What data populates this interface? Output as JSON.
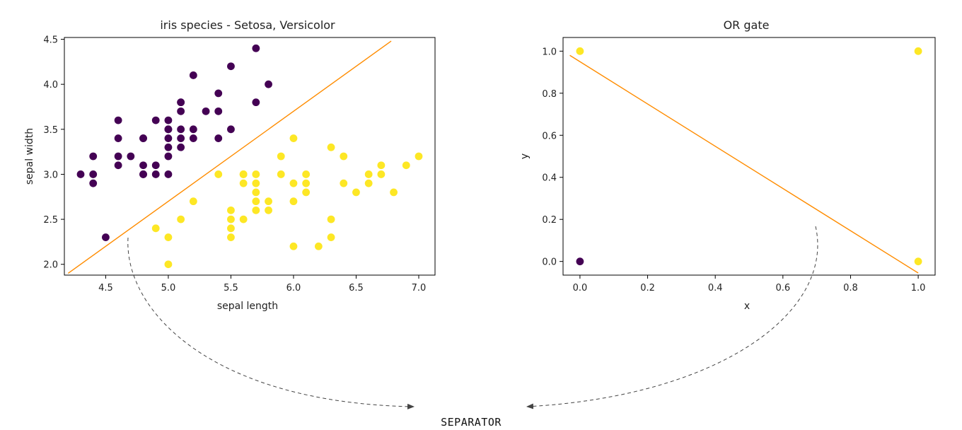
{
  "chart_data": [
    {
      "type": "scatter",
      "title": "iris species - Setosa, Versicolor",
      "xlabel": "sepal length",
      "ylabel": "sepal width",
      "xlim": [
        4.17,
        7.13
      ],
      "ylim": [
        1.88,
        4.52
      ],
      "xticks": [
        "4.5",
        "5.0",
        "5.5",
        "6.0",
        "6.5",
        "7.0"
      ],
      "yticks": [
        "2.0",
        "2.5",
        "3.0",
        "3.5",
        "4.0",
        "4.5"
      ],
      "grid": false,
      "series": [
        {
          "color": "#440154",
          "points": [
            [
              5.1,
              3.5
            ],
            [
              4.9,
              3.0
            ],
            [
              4.7,
              3.2
            ],
            [
              4.6,
              3.1
            ],
            [
              5.0,
              3.6
            ],
            [
              5.4,
              3.9
            ],
            [
              4.6,
              3.4
            ],
            [
              5.0,
              3.4
            ],
            [
              4.4,
              2.9
            ],
            [
              4.9,
              3.1
            ],
            [
              5.4,
              3.7
            ],
            [
              4.8,
              3.4
            ],
            [
              4.8,
              3.0
            ],
            [
              4.3,
              3.0
            ],
            [
              5.8,
              4.0
            ],
            [
              5.7,
              4.4
            ],
            [
              5.1,
              3.8
            ],
            [
              5.7,
              3.8
            ],
            [
              5.1,
              3.7
            ],
            [
              4.6,
              3.6
            ],
            [
              4.8,
              3.4
            ],
            [
              5.0,
              3.0
            ],
            [
              5.2,
              3.5
            ],
            [
              5.2,
              3.4
            ],
            [
              4.8,
              3.1
            ],
            [
              5.4,
              3.4
            ],
            [
              5.2,
              4.1
            ],
            [
              5.5,
              4.2
            ],
            [
              5.0,
              3.2
            ],
            [
              5.5,
              3.5
            ],
            [
              4.4,
              3.0
            ],
            [
              5.1,
              3.4
            ],
            [
              5.0,
              3.5
            ],
            [
              4.5,
              2.3
            ],
            [
              4.4,
              3.2
            ],
            [
              5.0,
              3.5
            ],
            [
              5.1,
              3.8
            ],
            [
              4.8,
              3.0
            ],
            [
              5.1,
              3.3
            ],
            [
              5.3,
              3.7
            ],
            [
              5.0,
              3.3
            ],
            [
              4.6,
              3.2
            ],
            [
              4.9,
              3.6
            ]
          ]
        },
        {
          "color": "#fde725",
          "points": [
            [
              7.0,
              3.2
            ],
            [
              6.4,
              3.2
            ],
            [
              6.9,
              3.1
            ],
            [
              5.5,
              2.3
            ],
            [
              6.5,
              2.8
            ],
            [
              5.7,
              2.8
            ],
            [
              6.3,
              3.3
            ],
            [
              4.9,
              2.4
            ],
            [
              6.6,
              2.9
            ],
            [
              5.2,
              2.7
            ],
            [
              5.0,
              2.0
            ],
            [
              5.9,
              3.0
            ],
            [
              6.0,
              2.2
            ],
            [
              6.1,
              2.9
            ],
            [
              5.6,
              2.9
            ],
            [
              6.7,
              3.1
            ],
            [
              5.6,
              3.0
            ],
            [
              5.8,
              2.7
            ],
            [
              6.2,
              2.2
            ],
            [
              5.6,
              2.5
            ],
            [
              5.9,
              3.2
            ],
            [
              6.1,
              2.8
            ],
            [
              6.3,
              2.5
            ],
            [
              6.4,
              2.9
            ],
            [
              6.6,
              3.0
            ],
            [
              6.8,
              2.8
            ],
            [
              6.7,
              3.0
            ],
            [
              6.0,
              2.9
            ],
            [
              5.7,
              2.6
            ],
            [
              5.5,
              2.4
            ],
            [
              5.5,
              2.5
            ],
            [
              6.0,
              2.7
            ],
            [
              5.4,
              3.0
            ],
            [
              6.0,
              3.4
            ],
            [
              6.3,
              2.3
            ],
            [
              5.6,
              3.0
            ],
            [
              5.5,
              2.6
            ],
            [
              6.1,
              3.0
            ],
            [
              5.8,
              2.6
            ],
            [
              5.0,
              2.3
            ],
            [
              5.7,
              3.0
            ],
            [
              5.7,
              2.9
            ],
            [
              5.1,
              2.5
            ],
            [
              5.7,
              2.7
            ]
          ]
        }
      ],
      "line": {
        "color": "#ff8c00",
        "x": [
          4.2,
          6.78
        ],
        "y": [
          1.9,
          4.48
        ]
      }
    },
    {
      "type": "scatter",
      "title": "OR gate",
      "xlabel": "x",
      "ylabel": "y",
      "xlim": [
        -0.05,
        1.05
      ],
      "ylim": [
        -0.065,
        1.065
      ],
      "xticks": [
        "0.0",
        "0.2",
        "0.4",
        "0.6",
        "0.8",
        "1.0"
      ],
      "yticks": [
        "0.0",
        "0.2",
        "0.4",
        "0.6",
        "0.8",
        "1.0"
      ],
      "grid": false,
      "series": [
        {
          "color": "#440154",
          "points": [
            [
              0,
              0
            ]
          ]
        },
        {
          "color": "#fde725",
          "points": [
            [
              0,
              1
            ],
            [
              1,
              0
            ],
            [
              1,
              1
            ]
          ]
        }
      ],
      "line": {
        "color": "#ff8c00",
        "x": [
          -0.03,
          1.0
        ],
        "y": [
          0.98,
          -0.055
        ]
      }
    }
  ],
  "annotation": {
    "label": "SEPARATOR"
  }
}
